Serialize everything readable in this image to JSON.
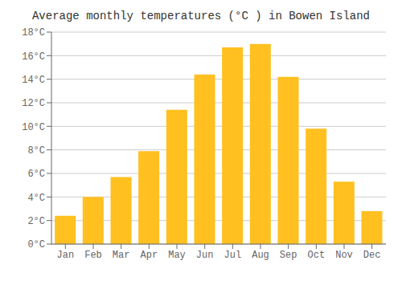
{
  "chart_data": {
    "type": "bar",
    "title": "Average monthly temperatures (°C ) in Bowen Island",
    "categories": [
      "Jan",
      "Feb",
      "Mar",
      "Apr",
      "May",
      "Jun",
      "Jul",
      "Aug",
      "Sep",
      "Oct",
      "Nov",
      "Dec"
    ],
    "values": [
      2.4,
      4.0,
      5.7,
      7.9,
      11.4,
      14.4,
      16.7,
      17.0,
      14.2,
      9.8,
      5.3,
      2.8
    ],
    "color": "#FFC020",
    "ylim": [
      0,
      18
    ],
    "yticks": [
      {
        "value": 0,
        "label": "0°C"
      },
      {
        "value": 2,
        "label": "2°C"
      },
      {
        "value": 4,
        "label": "4°C"
      },
      {
        "value": 6,
        "label": "6°C"
      },
      {
        "value": 8,
        "label": "8°C"
      },
      {
        "value": 10,
        "label": "10°C"
      },
      {
        "value": 12,
        "label": "12°C"
      },
      {
        "value": 14,
        "label": "14°C"
      },
      {
        "value": 16,
        "label": "16°C"
      },
      {
        "value": 18,
        "label": "18°C"
      }
    ],
    "grid": true
  }
}
